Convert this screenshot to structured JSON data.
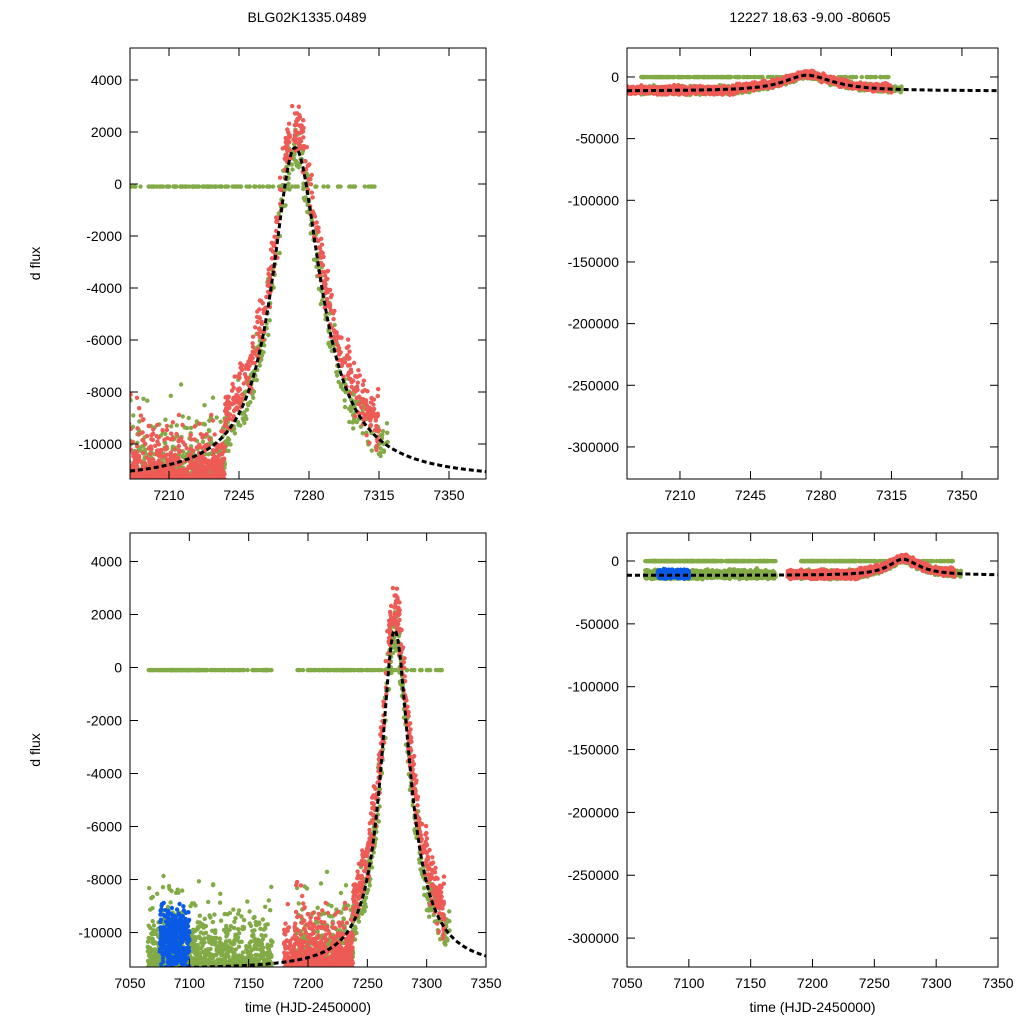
{
  "titles": {
    "left": "BLG02K1335.0489",
    "right": "12227  18.63  -9.00  -80605"
  },
  "colors": {
    "green": "#82aa46",
    "red": "#ee5a55",
    "blue": "#0a5ae6",
    "model": "#000000"
  },
  "chart_data": [
    {
      "id": "top-left",
      "type": "scatter",
      "title": "BLG02K1335.0489",
      "xlabel": "",
      "ylabel": "d flux",
      "xlim": [
        7190.5,
        7368.5
      ],
      "ylim": [
        -11346,
        5230
      ],
      "xticks": [
        "7210",
        "7245",
        "7280",
        "7315",
        "7350"
      ],
      "xtick_values": [
        7210,
        7245,
        7280,
        7315,
        7350
      ],
      "yticks": [
        "4000",
        "2000",
        "0",
        "-2000",
        "-4000",
        "-6000",
        "-8000",
        "-10000"
      ],
      "ytick_values": [
        4000,
        2000,
        0,
        -2000,
        -4000,
        -6000,
        -8000,
        -10000
      ]
    },
    {
      "id": "top-right",
      "type": "scatter",
      "title": "12227  18.63  -9.00  -80605",
      "xlabel": "",
      "ylabel": "",
      "xlim": [
        7183.7,
        7367.9
      ],
      "ylim": [
        -326000,
        23500
      ],
      "xticks": [
        "7210",
        "7245",
        "7280",
        "7315",
        "7350"
      ],
      "xtick_values": [
        7210,
        7245,
        7280,
        7315,
        7350
      ],
      "yticks": [
        "0",
        "-50000",
        "-100000",
        "-150000",
        "-200000",
        "-250000",
        "-300000"
      ],
      "ytick_values": [
        0,
        -50000,
        -100000,
        -150000,
        -200000,
        -250000,
        -300000
      ]
    },
    {
      "id": "bottom-left",
      "type": "scatter",
      "title": "",
      "xlabel": "time (HJD-2450000)",
      "ylabel": "d flux",
      "xlim": [
        7050,
        7350
      ],
      "ylim": [
        -11300,
        5074
      ],
      "xticks": [
        "7050",
        "7100",
        "7150",
        "7200",
        "7250",
        "7300",
        "7350"
      ],
      "xtick_values": [
        7050,
        7100,
        7150,
        7200,
        7250,
        7300,
        7350
      ],
      "yticks": [
        "4000",
        "2000",
        "0",
        "-2000",
        "-4000",
        "-6000",
        "-8000",
        "-10000"
      ],
      "ytick_values": [
        4000,
        2000,
        0,
        -2000,
        -4000,
        -6000,
        -8000,
        -10000
      ]
    },
    {
      "id": "bottom-right",
      "type": "scatter",
      "title": "",
      "xlabel": "time (HJD-2450000)",
      "ylabel": "",
      "xlim": [
        7050,
        7350
      ],
      "ylim": [
        -323000,
        22280
      ],
      "xticks": [
        "7050",
        "7100",
        "7150",
        "7200",
        "7250",
        "7300",
        "7350"
      ],
      "xtick_values": [
        7050,
        7100,
        7150,
        7200,
        7250,
        7300,
        7350
      ],
      "yticks": [
        "0",
        "-50000",
        "-100000",
        "-150000",
        "-200000",
        "-250000",
        "-300000"
      ],
      "ytick_values": [
        0,
        -50000,
        -100000,
        -150000,
        -200000,
        -250000,
        -300000
      ]
    }
  ],
  "model": {
    "t0": 7273,
    "peak": 1400,
    "baseline": -11400,
    "width_rise": 16,
    "width_fall": 18
  },
  "series": [
    {
      "name": "green series",
      "color": "green",
      "segments": [
        [
          7065,
          7110,
          3000
        ],
        [
          7110,
          7170,
          2500
        ],
        [
          7190,
          7240,
          2500
        ],
        [
          7240,
          7320,
          1500
        ]
      ]
    },
    {
      "name": "red series",
      "color": "red",
      "segments": [
        [
          7180,
          7240,
          3000
        ],
        [
          7240,
          7315,
          1800
        ]
      ]
    },
    {
      "name": "blue series",
      "color": "blue",
      "segments": [
        [
          7075,
          7100,
          1500
        ]
      ]
    }
  ]
}
